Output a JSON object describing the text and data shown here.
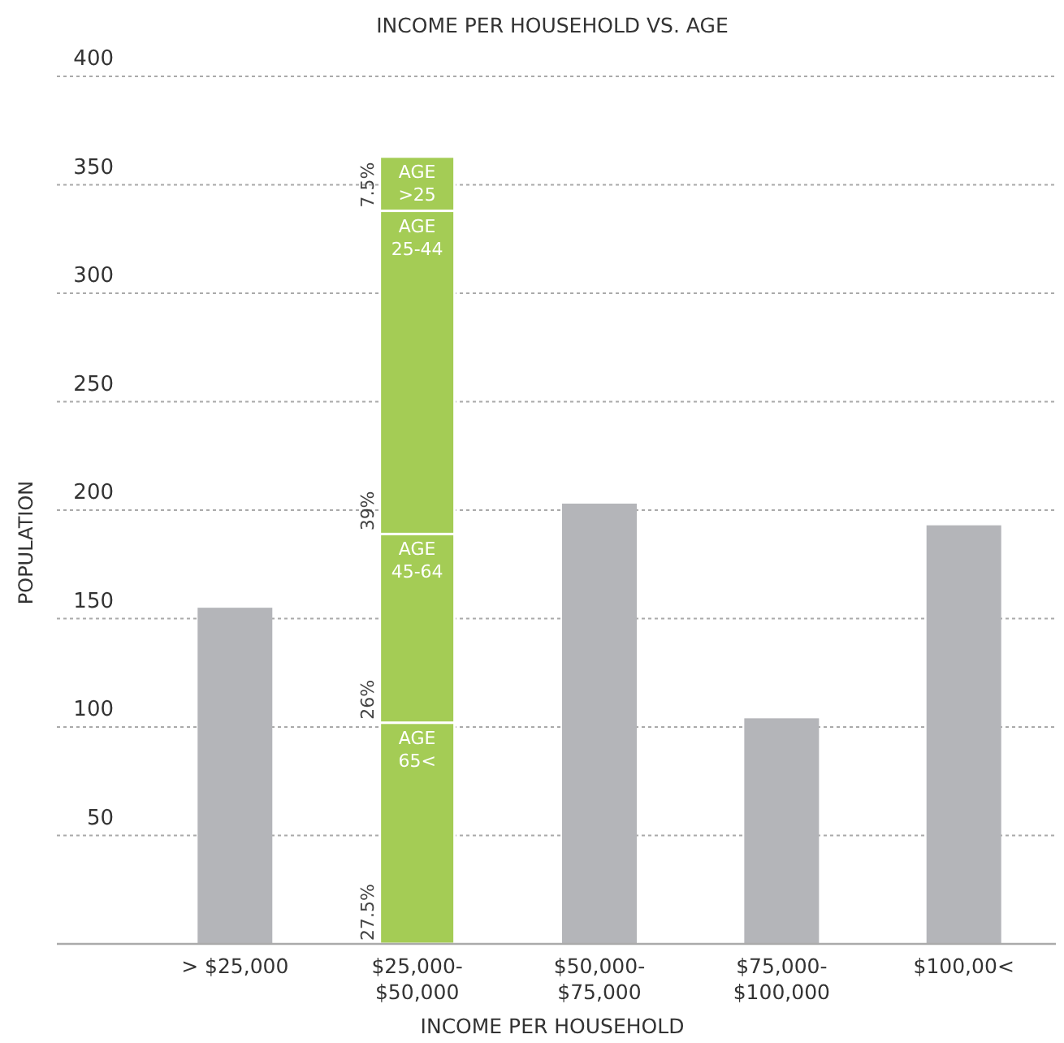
{
  "chart_data": {
    "type": "bar",
    "title": "INCOME PER HOUSEHOLD VS. AGE",
    "xlabel": "INCOME PER HOUSEHOLD",
    "ylabel": "POPULATION",
    "categories": [
      "> $25,000",
      "$25,000-$50,000",
      "$50,000-$75,000",
      "$75,000-$100,000",
      "$100,00<"
    ],
    "stacked": true,
    "series": [
      {
        "color": "#b4b5b9",
        "values": [
          155,
          null,
          203,
          104,
          193
        ]
      },
      {
        "name": "AGE 65<",
        "color": "#a4cc55",
        "values": [
          null,
          102,
          null,
          null,
          null
        ]
      },
      {
        "name": "AGE 45-64",
        "color": "#a4cc55",
        "values": [
          null,
          87,
          null,
          null,
          null
        ]
      },
      {
        "name": "AGE 25-44",
        "color": "#a4cc55",
        "values": [
          null,
          149,
          null,
          null,
          null
        ]
      },
      {
        "name": "AGE >25",
        "color": "#a4cc55",
        "values": [
          null,
          25,
          null,
          null,
          null
        ]
      }
    ],
    "annotations": [
      {
        "text": "27.5%",
        "x": "$25,000-$50,000",
        "y": 0
      },
      {
        "text": "26%",
        "x": "$25,000-$50,000",
        "y": 102
      },
      {
        "text": "39%",
        "x": "$25,000-$50,000",
        "y": 189
      },
      {
        "text": "7.5%",
        "x": "$25,000-$50,000",
        "y": 338
      }
    ],
    "ylim": [
      0,
      400
    ],
    "yticks": [
      50,
      100,
      150,
      200,
      250,
      300,
      350,
      400
    ],
    "grid": "y"
  }
}
